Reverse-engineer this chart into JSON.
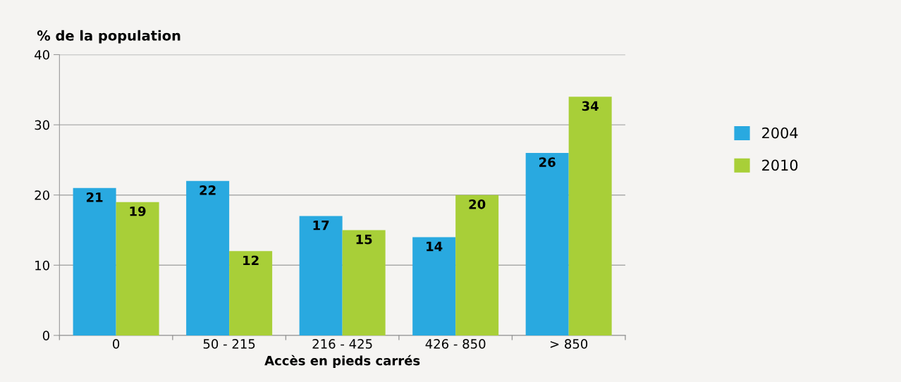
{
  "chart_data": {
    "type": "bar",
    "ylabel": "% de la population",
    "xlabel": "Accès en pieds carrés",
    "categories": [
      "0",
      "50 - 215",
      "216 - 425",
      "426 - 850",
      "> 850"
    ],
    "series": [
      {
        "name": "2004",
        "color": "#29a9e0",
        "values": [
          21,
          22,
          17,
          14,
          26
        ]
      },
      {
        "name": "2010",
        "color": "#a8cf38",
        "values": [
          19,
          12,
          15,
          20,
          34
        ]
      }
    ],
    "ylim": [
      0,
      40
    ],
    "yticks": [
      0,
      10,
      20,
      30,
      40
    ],
    "grid": "y",
    "legend": "right",
    "data_labels": true
  }
}
